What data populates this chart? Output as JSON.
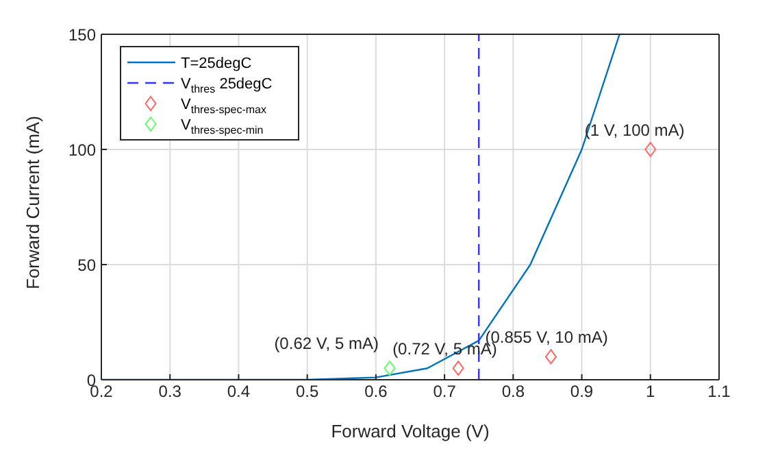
{
  "chart_data": {
    "type": "line",
    "xlabel": "Forward Voltage (V)",
    "ylabel": "Forward Current (mA)",
    "xlim": [
      0.2,
      1.1
    ],
    "xticks": [
      0.2,
      0.3,
      0.4,
      0.5,
      0.6,
      0.7,
      0.8,
      0.9,
      1,
      1.1
    ],
    "ylim": [
      0,
      150
    ],
    "yticks": [
      0,
      50,
      100,
      150
    ],
    "grid": true,
    "legend": "top left",
    "series": [
      {
        "name": "T=25degC",
        "color": "#0072bd",
        "marker": "none",
        "x": [
          0.2,
          0.5,
          0.6,
          0.675,
          0.75,
          0.825,
          0.9,
          0.955
        ],
        "values": [
          0,
          0,
          1,
          5,
          17,
          50,
          100,
          150
        ]
      },
      {
        "name": "V$_{thres}$ 25degC",
        "type": "line",
        "color": "#3333ff",
        "marker": "none",
        "line_style": "dashed",
        "x": [
          0.75,
          0.75
        ],
        "values": [
          0,
          150
        ]
      },
      {
        "name": "V$_{thres-spec-max}$",
        "type": "scatter",
        "color": "#ff6666",
        "marker": "diamond",
        "x": [
          0.72,
          0.855,
          1
        ],
        "values": [
          5,
          10,
          100
        ]
      },
      {
        "name": "V$_{thres-spec-min}$",
        "type": "scatter",
        "color": "#66ff66",
        "marker": "diamond",
        "x": [
          0.62
        ],
        "values": [
          5
        ]
      }
    ],
    "annotations": [
      {
        "text": "(0.62 V, 5 mA)",
        "x": 0.62,
        "y": 5
      },
      {
        "text": "(0.72 V, 5 mA)",
        "x": 0.72,
        "y": 5
      },
      {
        "text": "(0.855 V, 10 mA)",
        "x": 0.855,
        "y": 10
      },
      {
        "text": "(1 V, 100 mA)",
        "x": 1,
        "y": 100
      }
    ]
  }
}
